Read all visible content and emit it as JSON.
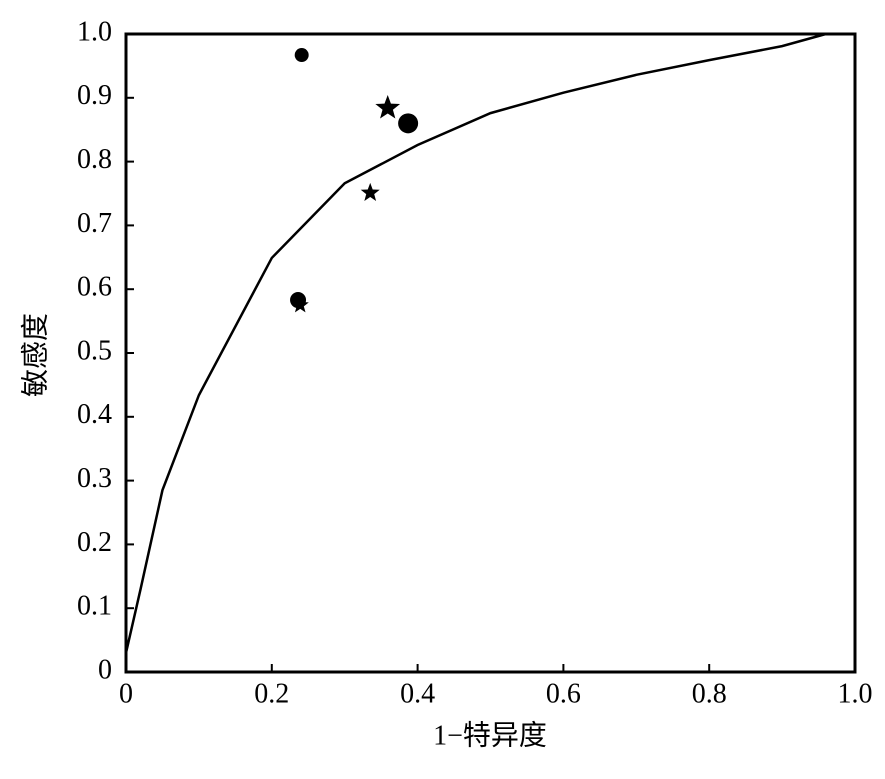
{
  "chart_data": {
    "type": "scatter",
    "xlabel": "1−特异度",
    "ylabel": "敏感度",
    "xlim": [
      0,
      1
    ],
    "ylim": [
      0,
      1
    ],
    "xticks": [
      0,
      0.2,
      0.4,
      0.6,
      0.8,
      {
        "value": 1,
        "label": "1.0"
      }
    ],
    "yticks": [
      0,
      0.1,
      0.2,
      0.3,
      0.4,
      0.5,
      0.6,
      0.7,
      0.8,
      0.9,
      {
        "value": 1,
        "label": "1.0"
      }
    ],
    "series": [
      {
        "marker": "circle",
        "color": "#000",
        "x": [
          0.241,
          0.387,
          0.236
        ],
        "values": [
          0.967,
          0.86,
          0.583
        ],
        "sizes": [
          7,
          10,
          8
        ]
      },
      {
        "marker": "star",
        "color": "#000",
        "x": [
          0.359,
          0.335,
          0.239
        ],
        "values": [
          0.884,
          0.751,
          0.575
        ],
        "sizes": [
          13,
          10,
          9
        ]
      }
    ],
    "curve": {
      "color": "#000",
      "x": [
        0,
        0.02,
        0.05,
        0.1,
        0.2,
        0.3,
        0.4,
        0.5,
        0.6,
        0.7,
        0.8,
        0.9,
        0.96
      ],
      "values": [
        0.03,
        0.13,
        0.285,
        0.434,
        0.649,
        0.766,
        0.826,
        0.876,
        0.908,
        0.936,
        0.959,
        0.981,
        1.0
      ]
    }
  }
}
